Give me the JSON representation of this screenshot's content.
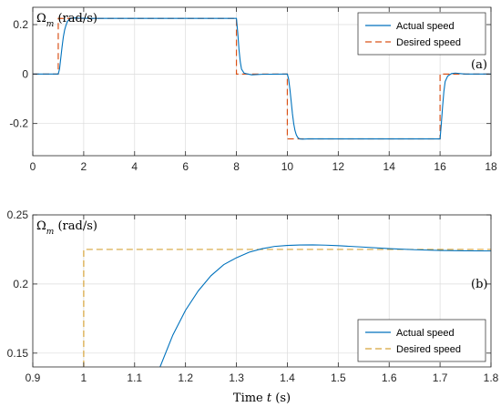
{
  "colors": {
    "actual": "#0072BD",
    "desired_a": "#D95319",
    "desired_b": "#D6A33A",
    "grid": "#DCDCDC",
    "axis": "#262626"
  },
  "chart_data": [
    {
      "type": "line",
      "panel_label": "(a)",
      "ylabel": "Ω_m (rad/s)",
      "ylabel_main": "Ω",
      "ylabel_sub": "m",
      "ylabel_unit": " (rad/s)",
      "xlabel": "",
      "xlim": [
        0,
        18
      ],
      "ylim": [
        -0.33,
        0.27
      ],
      "xticks": [
        0,
        2,
        4,
        6,
        8,
        10,
        12,
        14,
        16,
        18
      ],
      "xtick_labels": [
        "0",
        "2",
        "4",
        "6",
        "8",
        "10",
        "12",
        "14",
        "16",
        "18"
      ],
      "yticks": [
        -0.2,
        0,
        0.2
      ],
      "ytick_labels": [
        "-0.2",
        "0",
        "0.2"
      ],
      "grid": true,
      "legend_position": "top-right",
      "series": [
        {
          "name": "Actual speed",
          "style": "solid",
          "x": [
            0,
            1.0,
            1.05,
            1.1,
            1.15,
            1.2,
            1.25,
            1.3,
            1.35,
            1.4,
            1.45,
            1.5,
            1.6,
            1.8,
            2.2,
            3,
            5,
            7,
            7.98,
            8.0,
            8.05,
            8.1,
            8.15,
            8.2,
            8.3,
            8.45,
            8.6,
            9,
            9.98,
            10.0,
            10.05,
            10.1,
            10.15,
            10.2,
            10.25,
            10.3,
            10.35,
            10.4,
            10.45,
            10.5,
            10.6,
            10.8,
            11.2,
            12,
            14,
            15.98,
            16.0,
            16.05,
            16.1,
            16.15,
            16.2,
            16.3,
            16.45,
            16.6,
            17,
            18
          ],
          "y": [
            0,
            0,
            0.02,
            0.065,
            0.11,
            0.15,
            0.178,
            0.196,
            0.21,
            0.218,
            0.222,
            0.225,
            0.227,
            0.226,
            0.225,
            0.225,
            0.225,
            0.225,
            0.225,
            0.225,
            0.17,
            0.1,
            0.05,
            0.02,
            0.004,
            0.0,
            -0.003,
            -0.001,
            0.0,
            0.0,
            -0.02,
            -0.06,
            -0.11,
            -0.16,
            -0.2,
            -0.228,
            -0.245,
            -0.255,
            -0.26,
            -0.262,
            -0.263,
            -0.262,
            -0.262,
            -0.262,
            -0.262,
            -0.262,
            -0.262,
            -0.2,
            -0.13,
            -0.07,
            -0.03,
            -0.008,
            0.002,
            0.004,
            0.0,
            0.0
          ]
        },
        {
          "name": "Desired speed",
          "style": "dashed",
          "x": [
            0,
            1,
            1,
            8,
            8,
            10,
            10,
            16,
            16,
            18
          ],
          "y": [
            0,
            0,
            0.225,
            0.225,
            0,
            0,
            -0.262,
            -0.262,
            0,
            0
          ]
        }
      ]
    },
    {
      "type": "line",
      "panel_label": "(b)",
      "ylabel": "Ω_m (rad/s)",
      "ylabel_main": "Ω",
      "ylabel_sub": "m",
      "ylabel_unit": " (rad/s)",
      "xlabel": "Time t (s)",
      "xlabel_prefix": "Time ",
      "xlabel_var": "t",
      "xlabel_unit": " (s)",
      "xlim": [
        0.9,
        1.8
      ],
      "ylim": [
        0.14,
        0.25
      ],
      "xticks": [
        0.9,
        1.0,
        1.1,
        1.2,
        1.3,
        1.4,
        1.5,
        1.6,
        1.7,
        1.8
      ],
      "xtick_labels": [
        "0.9",
        "1",
        "1.1",
        "1.2",
        "1.3",
        "1.4",
        "1.5",
        "1.6",
        "1.7",
        "1.8"
      ],
      "yticks": [
        0.15,
        0.2,
        0.25
      ],
      "ytick_labels": [
        "0.15",
        "0.2",
        "0.25"
      ],
      "grid": true,
      "legend_position": "bottom-right",
      "series": [
        {
          "name": "Actual speed",
          "style": "solid",
          "x": [
            1.15,
            1.175,
            1.2,
            1.225,
            1.25,
            1.275,
            1.3,
            1.325,
            1.35,
            1.375,
            1.4,
            1.425,
            1.45,
            1.475,
            1.5,
            1.55,
            1.6,
            1.65,
            1.7,
            1.75,
            1.8
          ],
          "y": [
            0.14,
            0.163,
            0.181,
            0.195,
            0.206,
            0.214,
            0.219,
            0.223,
            0.2255,
            0.2272,
            0.2279,
            0.2282,
            0.2283,
            0.2281,
            0.2277,
            0.2267,
            0.2256,
            0.2248,
            0.2243,
            0.224,
            0.2239
          ]
        },
        {
          "name": "Desired speed",
          "style": "dashed",
          "x": [
            1,
            1,
            1.8
          ],
          "y": [
            0.14,
            0.225,
            0.225
          ]
        }
      ]
    }
  ]
}
